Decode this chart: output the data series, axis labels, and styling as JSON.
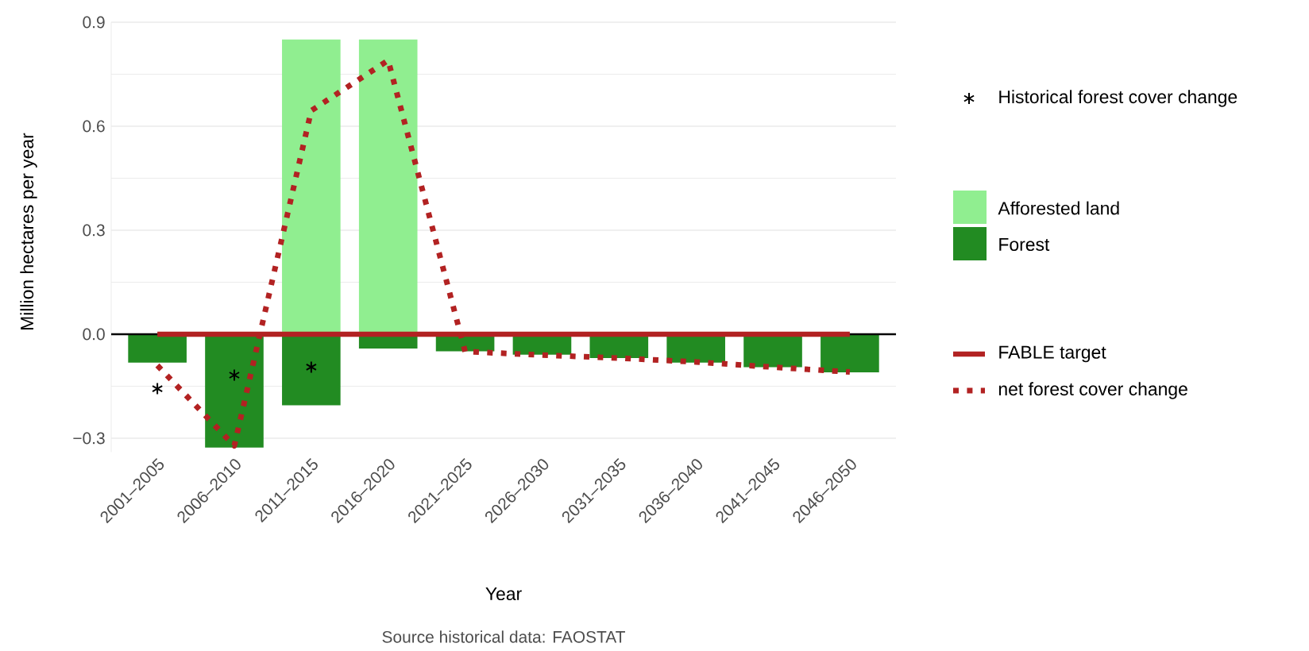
{
  "chart_data": {
    "type": "bar",
    "xlabel": "Year",
    "ylabel": "Million hectares per year",
    "annotations": [
      "Source historical data: FAOSTAT"
    ],
    "categories": [
      "2001–2005",
      "2006–2010",
      "2011–2015",
      "2016–2020",
      "2021–2025",
      "2026–2030",
      "2031–2035",
      "2036–2040",
      "2041–2045",
      "2046–2050"
    ],
    "ylim": [
      -0.34,
      0.9
    ],
    "yticks": [
      {
        "value": -0.3,
        "label": "−0.3"
      },
      {
        "value": 0,
        "label": "0.0"
      },
      0.3,
      0.6,
      0.9
    ],
    "grid": "y",
    "legend": "right",
    "ref_lines": [
      {
        "axis": "y",
        "value": 0,
        "color": "#000000"
      }
    ],
    "series": [
      {
        "name": "Historical forest cover change",
        "type": "scatter",
        "marker": "cross",
        "color": "#000000",
        "values": [
          -0.157,
          -0.118,
          -0.095,
          null,
          null,
          null,
          null,
          null,
          null,
          null
        ]
      },
      {
        "name": "Afforested land",
        "color": "#90ee90",
        "values": [
          null,
          null,
          0.85,
          0.85,
          null,
          null,
          null,
          null,
          null,
          null
        ]
      },
      {
        "name": "Forest",
        "color": "#228b22",
        "values": [
          -0.082,
          -0.327,
          -0.205,
          -0.041,
          -0.049,
          -0.059,
          -0.069,
          -0.082,
          -0.095,
          -0.11
        ]
      },
      {
        "name": "FABLE target",
        "type": "line",
        "line_style": "solid",
        "color": "#b22222",
        "values": [
          0,
          0,
          0,
          0,
          0,
          0,
          0,
          0,
          0,
          0
        ]
      },
      {
        "name": "net forest cover change",
        "type": "line",
        "line_style": "dotted",
        "color": "#b22222",
        "values": [
          -0.09,
          -0.322,
          0.645,
          0.79,
          -0.05,
          -0.06,
          -0.069,
          -0.08,
          -0.095,
          -0.109
        ]
      }
    ]
  }
}
